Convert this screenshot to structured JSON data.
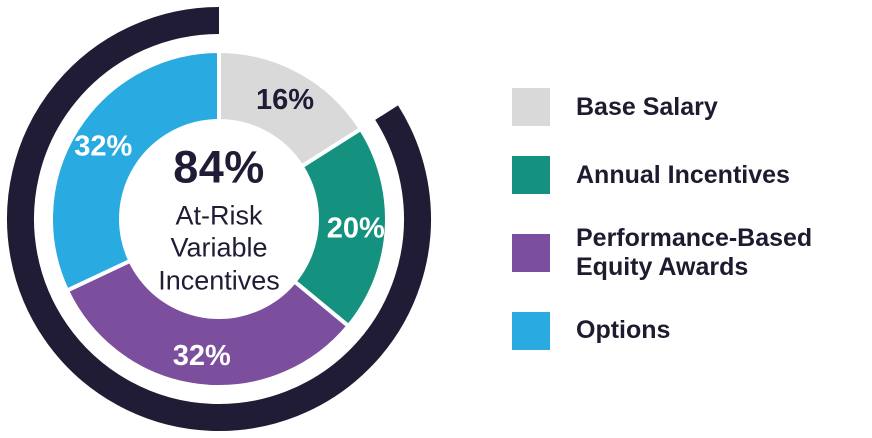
{
  "chart_data": {
    "type": "pie",
    "variant": "donut",
    "start_angle_deg": 0,
    "direction": "clockwise",
    "segments": [
      {
        "label": "Base Salary",
        "value": 16,
        "color": "#d9d9d9",
        "label_text": "16%",
        "label_color": "#201c35"
      },
      {
        "label": "Annual Incentives",
        "value": 20,
        "color": "#14917f",
        "label_text": "20%",
        "label_color": "#ffffff"
      },
      {
        "label": "Performance-Based Equity Awards",
        "value": 32,
        "color": "#7c4e9e",
        "label_text": "32%",
        "label_color": "#ffffff"
      },
      {
        "label": "Options",
        "value": 32,
        "color": "#29aae1",
        "label_text": "32%",
        "label_color": "#ffffff"
      }
    ],
    "center": {
      "value": "84%",
      "lines": [
        "At-Risk",
        "Variable",
        "Incentives"
      ]
    },
    "outer_arc": {
      "covers_percent": 84,
      "color": "#201c35",
      "starts_after_segment": "Base Salary"
    },
    "legend_position": "right",
    "grid": false
  },
  "legend": {
    "items": [
      {
        "label": "Base Salary",
        "color": "#d9d9d9"
      },
      {
        "label": "Annual Incentives",
        "color": "#14917f"
      },
      {
        "label": "Performance-Based Equity Awards",
        "color": "#7c4e9e"
      },
      {
        "label": "Options",
        "color": "#29aae1"
      }
    ]
  }
}
